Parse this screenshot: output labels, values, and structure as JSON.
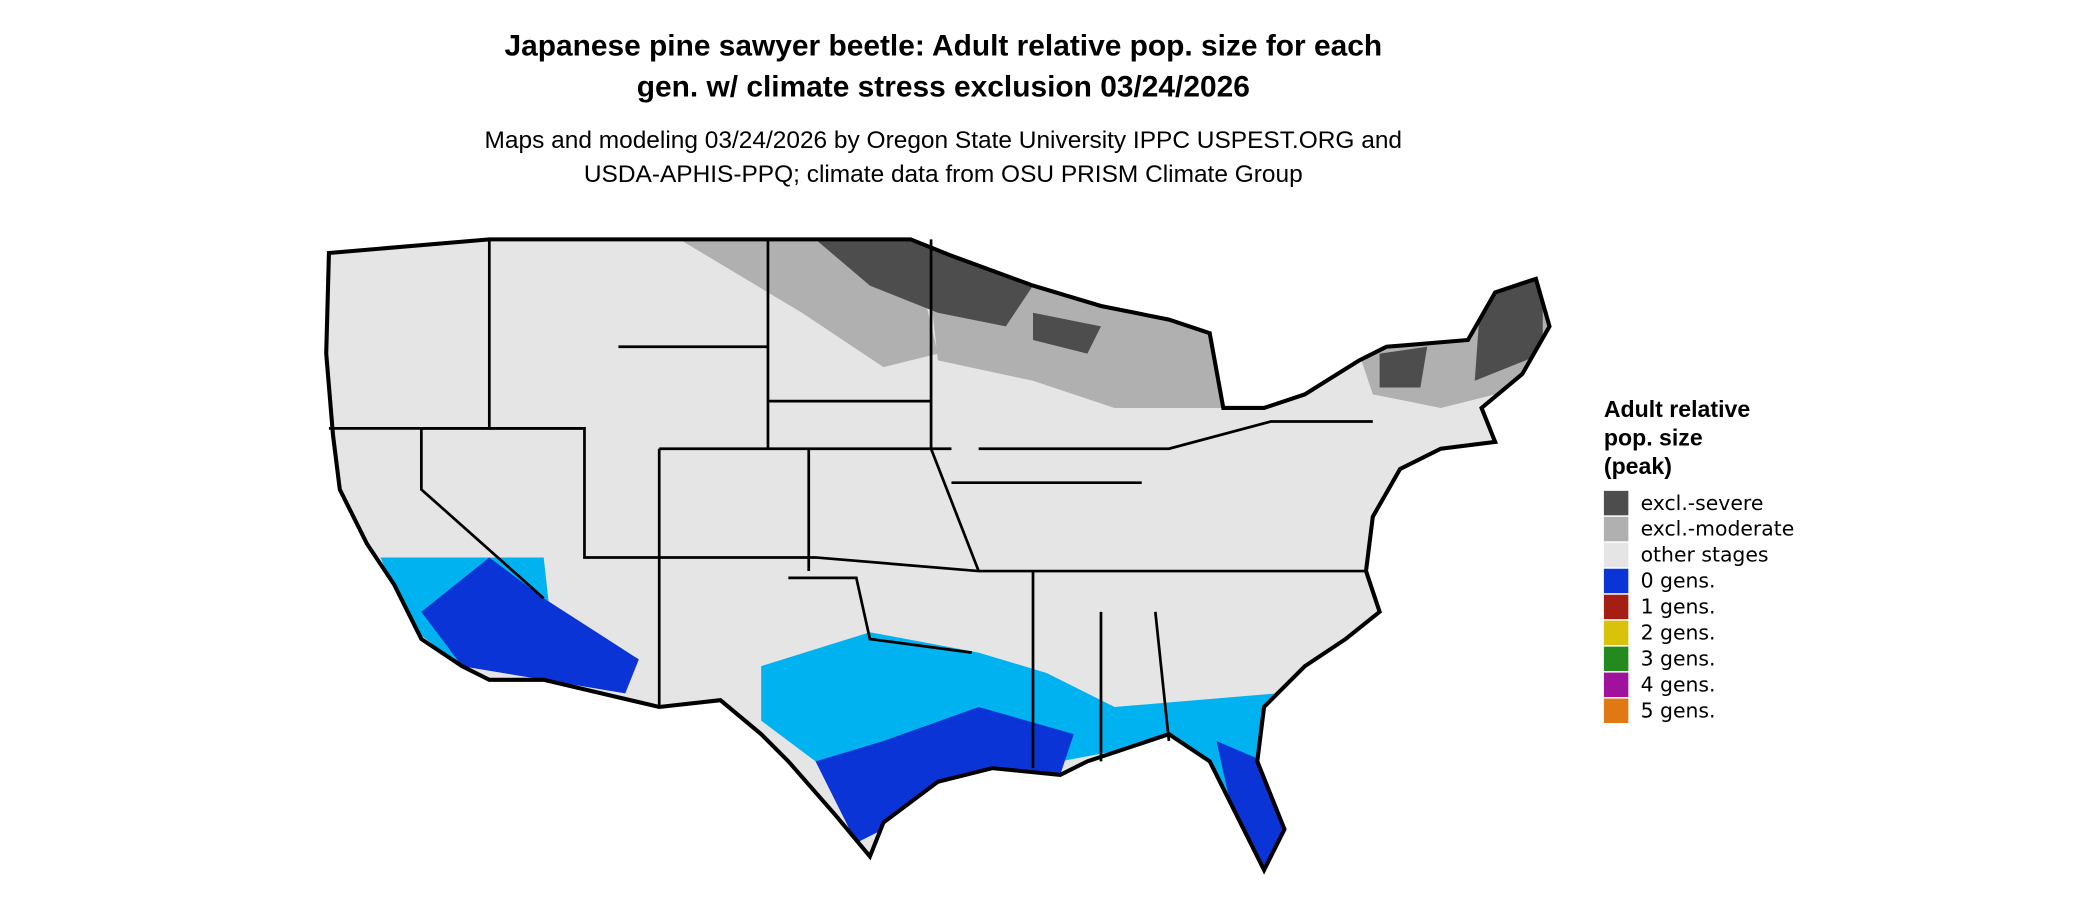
{
  "header": {
    "title_lines": [
      "Japanese pine sawyer beetle: Adult relative pop. size for each",
      "gen. w/ climate stress exclusion 03/24/2026"
    ],
    "subtitle_lines": [
      "Maps and modeling 03/24/2026 by Oregon State University IPPC USPEST.ORG and",
      "USDA-APHIS-PPQ; climate data from OSU PRISM Climate Group"
    ]
  },
  "legend": {
    "title_lines": [
      "Adult relative",
      "pop. size",
      "(peak)"
    ],
    "items": [
      {
        "label": "excl.-severe",
        "color": "#4d4d4d"
      },
      {
        "label": "excl.-moderate",
        "color": "#b0b0b0"
      },
      {
        "label": "other stages",
        "color": "#e5e5e5"
      },
      {
        "label": "0 gens.",
        "color": "#0a34d6"
      },
      {
        "label": "1 gens.",
        "color": "#a51e14"
      },
      {
        "label": "2 gens.",
        "color": "#d9c20a"
      },
      {
        "label": "3 gens.",
        "color": "#248a1f"
      },
      {
        "label": "4 gens.",
        "color": "#a0129e"
      },
      {
        "label": "5 gens.",
        "color": "#e07814"
      }
    ]
  }
}
